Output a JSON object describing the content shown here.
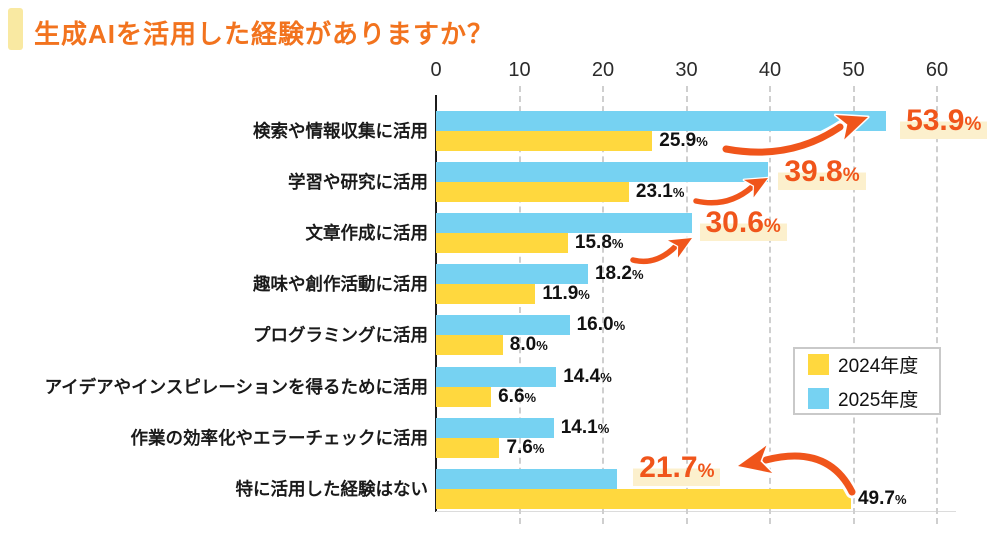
{
  "title": "生成AIを活用した経験がありますか？",
  "colors": {
    "bar_2024_yellow": "#ffd83e",
    "bar_2025_blue": "#76d2f2",
    "accent_orange": "#f0551b",
    "title_orange": "#f2731e",
    "title_marker_yellow": "#f9e9a2",
    "highlight_bg_cream": "#fcf0cd",
    "grid_gray": "#cfcfcf",
    "text_black": "#1a1a1a"
  },
  "legend": {
    "items": [
      {
        "label": "2024年度",
        "color": "#ffd83e"
      },
      {
        "label": "2025年度",
        "color": "#76d2f2"
      }
    ]
  },
  "chart_data": {
    "type": "bar",
    "orientation": "horizontal",
    "title": "生成AIを活用した経験がありますか？",
    "categories": [
      "検索や情報収集に活用",
      "学習や研究に活用",
      "文章作成に活用",
      "趣味や創作活動に活用",
      "プログラミングに活用",
      "アイデアやインスピレーションを得るために活用",
      "作業の効率化やエラーチェックに活用",
      "特に活用した経験はない"
    ],
    "series": [
      {
        "name": "2025年度",
        "color": "#76d2f2",
        "values": [
          53.9,
          39.8,
          30.6,
          18.2,
          16.0,
          14.4,
          14.1,
          21.7
        ],
        "labels": [
          "53.9",
          "39.8",
          "30.6",
          "18.2",
          "16.0",
          "14.4",
          "14.1",
          "21.7"
        ]
      },
      {
        "name": "2024年度",
        "color": "#ffd83e",
        "values": [
          25.9,
          23.1,
          15.8,
          11.9,
          8.0,
          6.6,
          7.6,
          49.7
        ],
        "labels": [
          "25.9",
          "23.1",
          "15.8",
          "11.9",
          "8.0",
          "6.6",
          "7.6",
          "49.7"
        ]
      }
    ],
    "percent_suffix": "%",
    "xlim": [
      0,
      60
    ],
    "xticks": [
      0,
      10,
      20,
      30,
      40,
      50,
      60
    ],
    "grid": "dashed-vertical",
    "legend_position": "middle-right",
    "highlighted_rows": [
      0,
      1,
      2,
      7
    ],
    "highlight_series": "2025年度",
    "annotations": "orange arrows point at highlighted 2025 values (53.9%, 39.8%, 30.6%, 21.7%)"
  }
}
